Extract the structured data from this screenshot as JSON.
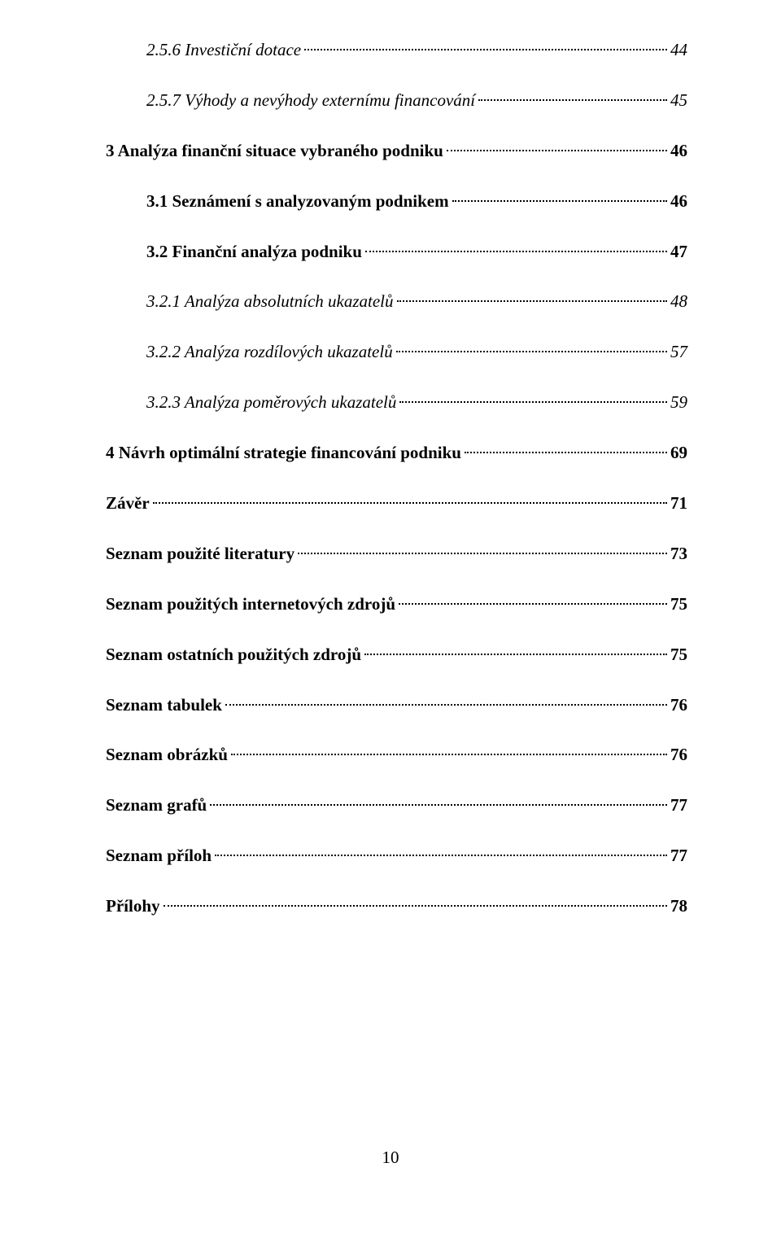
{
  "toc": [
    {
      "text": "2.5.6    Investiční dotace",
      "page": "44",
      "bold": false,
      "italic": true,
      "indent": 1,
      "space": ""
    },
    {
      "text": "2.5.7    Výhody a nevýhody externímu financování",
      "page": "45",
      "bold": false,
      "italic": true,
      "indent": 1,
      "space": "sp-large"
    },
    {
      "text": "3      Analýza finanční situace vybraného podniku",
      "page": "46",
      "bold": true,
      "italic": false,
      "indent": 0,
      "space": "sp-large"
    },
    {
      "text": "3.1    Seznámení s analyzovaným podnikem",
      "page": "46",
      "bold": true,
      "italic": false,
      "indent": 1,
      "space": "sp-large"
    },
    {
      "text": "3.2    Finanční analýza podniku",
      "page": "47",
      "bold": true,
      "italic": false,
      "indent": 1,
      "space": "sp-large"
    },
    {
      "text": "3.2.1    Analýza absolutních ukazatelů",
      "page": "48",
      "bold": false,
      "italic": true,
      "indent": 2,
      "space": "sp-large"
    },
    {
      "text": "3.2.2    Analýza rozdílových ukazatelů",
      "page": "57",
      "bold": false,
      "italic": true,
      "indent": 2,
      "space": "sp-large"
    },
    {
      "text": "3.2.3    Analýza poměrových ukazatelů",
      "page": "59",
      "bold": false,
      "italic": true,
      "indent": 2,
      "space": "sp-large"
    },
    {
      "text": "4      Návrh optimální strategie financování podniku",
      "page": "69",
      "bold": true,
      "italic": false,
      "indent": 0,
      "space": "sp-large"
    },
    {
      "text": "Závěr",
      "page": "71",
      "bold": true,
      "italic": false,
      "indent": 0,
      "space": "sp-large"
    },
    {
      "text": "Seznam použité literatury",
      "page": "73",
      "bold": true,
      "italic": false,
      "indent": 0,
      "space": "sp-large"
    },
    {
      "text": "Seznam použitých internetových zdrojů",
      "page": "75",
      "bold": true,
      "italic": false,
      "indent": 0,
      "space": "sp-large"
    },
    {
      "text": "Seznam ostatních použitých zdrojů",
      "page": "75",
      "bold": true,
      "italic": false,
      "indent": 0,
      "space": "sp-large"
    },
    {
      "text": "Seznam tabulek",
      "page": "76",
      "bold": true,
      "italic": false,
      "indent": 0,
      "space": "sp-large"
    },
    {
      "text": "Seznam obrázků",
      "page": "76",
      "bold": true,
      "italic": false,
      "indent": 0,
      "space": "sp-large"
    },
    {
      "text": "Seznam grafů",
      "page": "77",
      "bold": true,
      "italic": false,
      "indent": 0,
      "space": "sp-large"
    },
    {
      "text": "Seznam příloh",
      "page": "77",
      "bold": true,
      "italic": false,
      "indent": 0,
      "space": "sp-large"
    },
    {
      "text": "Přílohy",
      "page": "78",
      "bold": true,
      "italic": false,
      "indent": 0,
      "space": "sp-large"
    }
  ],
  "footer": "10"
}
